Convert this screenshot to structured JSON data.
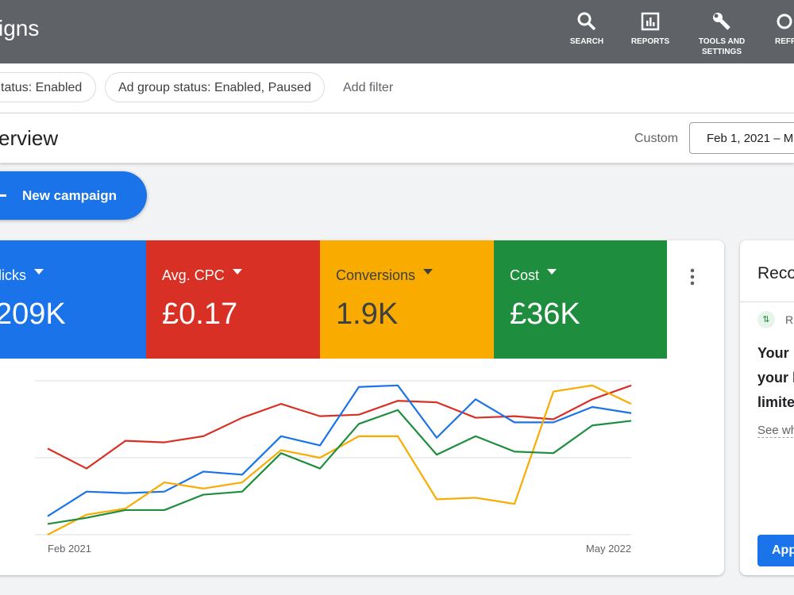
{
  "header": {
    "title": "igns",
    "nav": [
      "SEARCH",
      "REPORTS",
      "TOOLS AND SETTINGS",
      "REFR"
    ]
  },
  "filters": {
    "chips": [
      "tatus: Enabled",
      "Ad group status: Enabled, Paused"
    ],
    "add": "Add filter"
  },
  "overview": {
    "title": "erview",
    "range_label": "Custom",
    "range": "Feb 1, 2021 – M"
  },
  "button": "New campaign",
  "metrics": [
    {
      "name": "licks",
      "value": "209K"
    },
    {
      "name": "Avg. CPC",
      "value": "£0.17"
    },
    {
      "name": "Conversions",
      "value": "1.9K"
    },
    {
      "name": "Cost",
      "value": "£36K"
    }
  ],
  "recommendations": {
    "title": "Reco",
    "tag": "R",
    "lines": [
      "Your",
      "your l",
      "limite"
    ],
    "link": "See wh",
    "apply": "App"
  },
  "chart_data": {
    "type": "line",
    "categories": [
      "Feb 2021",
      null,
      null,
      null,
      null,
      null,
      null,
      null,
      null,
      null,
      null,
      null,
      null,
      null,
      null,
      "May 2022"
    ],
    "ylim": [
      0,
      100
    ],
    "yticks": [
      0,
      50,
      100
    ],
    "grid": true,
    "series": [
      {
        "name": "Avg. CPC",
        "color": "#d93025",
        "values": [
          56,
          43,
          61,
          60,
          64,
          76,
          85,
          77,
          78,
          87,
          86,
          76,
          77,
          75,
          88,
          97
        ]
      },
      {
        "name": "Clicks",
        "color": "#1a73e8",
        "values": [
          12,
          28,
          27,
          28,
          41,
          39,
          64,
          58,
          96,
          97,
          63,
          88,
          73,
          73,
          83,
          79
        ]
      },
      {
        "name": "Conversions",
        "color": "#f9ab00",
        "values": [
          0,
          13,
          17,
          34,
          30,
          34,
          55,
          50,
          64,
          64,
          23,
          24,
          20,
          93,
          97,
          85
        ]
      },
      {
        "name": "Cost",
        "color": "#1e8e3e",
        "values": [
          7,
          11,
          16,
          16,
          26,
          28,
          53,
          43,
          72,
          81,
          52,
          64,
          54,
          53,
          71,
          74
        ]
      }
    ]
  }
}
